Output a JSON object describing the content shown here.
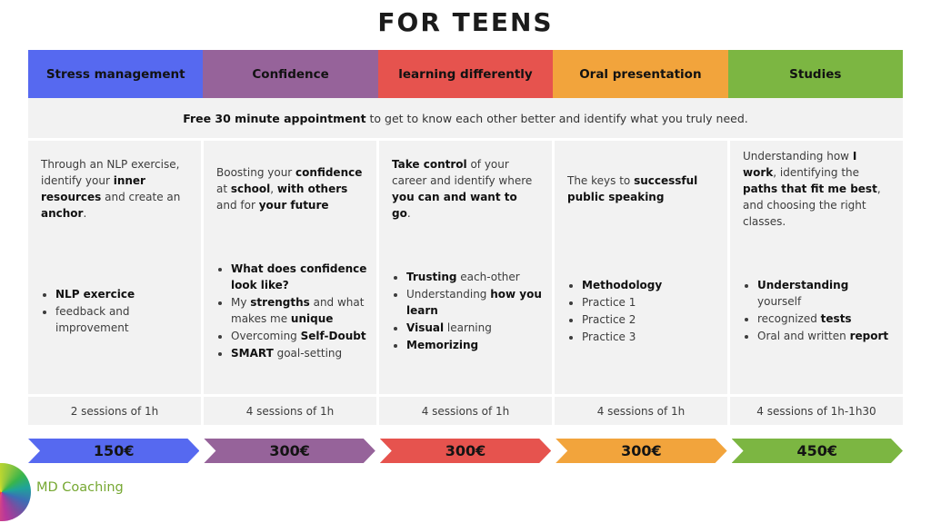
{
  "title": "FOR TEENS",
  "appointment": [
    {
      "t": "Free 30 minute appointment",
      "b": true
    },
    {
      "t": " to get to know each other better and identify what you truly need."
    }
  ],
  "columns": [
    {
      "title": "Stress management",
      "color": "#5669f0",
      "description": [
        {
          "t": "Through an NLP exercise, identify your "
        },
        {
          "t": "inner resources",
          "b": true
        },
        {
          "t": " and create an "
        },
        {
          "t": "anchor",
          "b": true
        },
        {
          "t": "."
        }
      ],
      "bullets": [
        [
          {
            "t": "NLP exercice",
            "b": true
          }
        ],
        [
          {
            "t": "feedback and improvement"
          }
        ]
      ],
      "sessions": "2 sessions of 1h",
      "price": "150€"
    },
    {
      "title": "Confidence",
      "color": "#96639a",
      "description": [
        {
          "t": "Boosting your "
        },
        {
          "t": "confidence",
          "b": true
        },
        {
          "t": " at "
        },
        {
          "t": "school",
          "b": true
        },
        {
          "t": ", "
        },
        {
          "t": "with others",
          "b": true
        },
        {
          "t": " and for "
        },
        {
          "t": "your future",
          "b": true
        }
      ],
      "bullets": [
        [
          {
            "t": "What does confidence look like?",
            "b": true
          }
        ],
        [
          {
            "t": "My "
          },
          {
            "t": "strengths",
            "b": true
          },
          {
            "t": " and what makes me "
          },
          {
            "t": "unique",
            "b": true
          }
        ],
        [
          {
            "t": "Overcoming "
          },
          {
            "t": "Self-Doubt",
            "b": true
          }
        ],
        [
          {
            "t": "SMART",
            "b": true
          },
          {
            "t": " goal-setting"
          }
        ]
      ],
      "sessions": "4 sessions of 1h",
      "price": "300€"
    },
    {
      "title": "learning differently",
      "color": "#e6534e",
      "description": [
        {
          "t": "Take control",
          "b": true
        },
        {
          "t": " of your career and identify where "
        },
        {
          "t": "you can and want to go",
          "b": true
        },
        {
          "t": "."
        }
      ],
      "bullets": [
        [
          {
            "t": "Trusting",
            "b": true
          },
          {
            "t": " each-other"
          }
        ],
        [
          {
            "t": "Understanding "
          },
          {
            "t": "how you learn",
            "b": true
          }
        ],
        [
          {
            "t": "Visual",
            "b": true
          },
          {
            "t": " learning"
          }
        ],
        [
          {
            "t": "Memorizing",
            "b": true
          }
        ]
      ],
      "sessions": "4 sessions of 1h",
      "price": "300€"
    },
    {
      "title": "Oral presentation",
      "color": "#f2a43c",
      "description": [
        {
          "t": "The keys to "
        },
        {
          "t": "successful public speaking",
          "b": true
        }
      ],
      "bullets": [
        [
          {
            "t": "Methodology",
            "b": true
          }
        ],
        [
          {
            "t": "Practice 1"
          }
        ],
        [
          {
            "t": "Practice 2"
          }
        ],
        [
          {
            "t": "Practice 3"
          }
        ]
      ],
      "sessions": "4 sessions of 1h",
      "price": "300€"
    },
    {
      "title": "Studies",
      "color": "#7cb642",
      "description": [
        {
          "t": "Understanding how "
        },
        {
          "t": "I work",
          "b": true
        },
        {
          "t": ", identifying the "
        },
        {
          "t": "paths that fit me best",
          "b": true
        },
        {
          "t": ", and choosing the right classes."
        }
      ],
      "bullets": [
        [
          {
            "t": "Understanding",
            "b": true
          },
          {
            "t": " yourself"
          }
        ],
        [
          {
            "t": "recognized "
          },
          {
            "t": "tests",
            "b": true
          }
        ],
        [
          {
            "t": "Oral and written "
          },
          {
            "t": "report",
            "b": true
          }
        ]
      ],
      "sessions": "4 sessions of 1h-1h30",
      "price": "450€"
    }
  ],
  "logo": {
    "brand": "MD Coaching",
    "brand_color": "#76a832"
  }
}
